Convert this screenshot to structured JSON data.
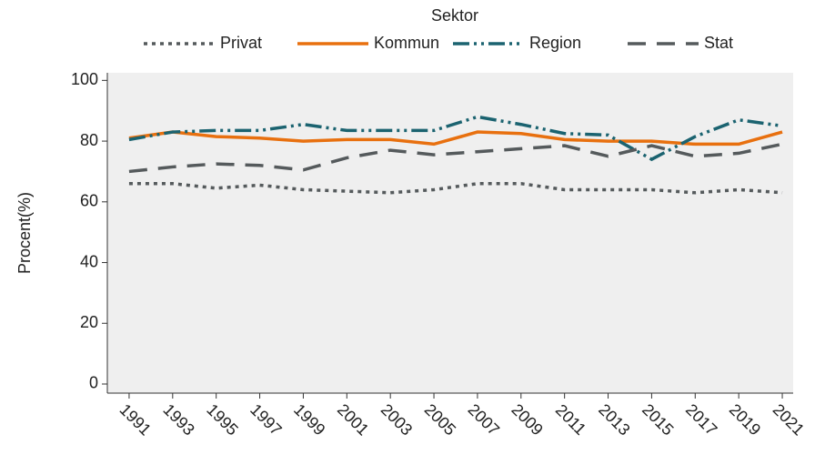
{
  "chart_data": {
    "type": "line",
    "legend_title": "Sektor",
    "y_label": "Procent(%)",
    "x": [
      1991,
      1993,
      1995,
      1997,
      1999,
      2001,
      2003,
      2005,
      2007,
      2009,
      2011,
      2013,
      2015,
      2017,
      2019,
      2021
    ],
    "series": [
      {
        "name": "Privat",
        "color": "#555a5c",
        "dash": "4,5",
        "values": [
          66,
          66,
          64.5,
          65.5,
          64,
          63.5,
          63,
          64,
          66,
          66,
          64,
          64,
          64,
          63,
          64,
          63
        ]
      },
      {
        "name": "Kommun",
        "color": "#e8700f",
        "dash": "none",
        "values": [
          81,
          83,
          81.5,
          81,
          80,
          80.5,
          80.5,
          79,
          83,
          82.5,
          80.5,
          80,
          80,
          79,
          79,
          83
        ]
      },
      {
        "name": "Region",
        "color": "#1b6370",
        "dash": "18,5,3,5,3,5",
        "values": [
          80.5,
          83,
          83.5,
          83.5,
          85.5,
          83.5,
          83.5,
          83.5,
          88,
          85.5,
          82.5,
          82,
          74,
          81.5,
          87,
          85
        ]
      },
      {
        "name": "Stat",
        "color": "#555a5c",
        "dash": "20,12",
        "values": [
          70,
          71.5,
          72.5,
          72,
          70.5,
          74.5,
          77,
          75.5,
          76.5,
          77.5,
          78.5,
          75,
          78.5,
          75,
          76,
          79
        ]
      }
    ],
    "xlim": [
      1990,
      2021.5
    ],
    "xticks": [
      1991,
      1993,
      1995,
      1997,
      1999,
      2001,
      2003,
      2005,
      2007,
      2009,
      2011,
      2013,
      2015,
      2017,
      2019,
      2021
    ],
    "ylim": [
      -3,
      102.5
    ],
    "yticks": [
      0,
      20,
      40,
      60,
      80,
      100
    ]
  }
}
